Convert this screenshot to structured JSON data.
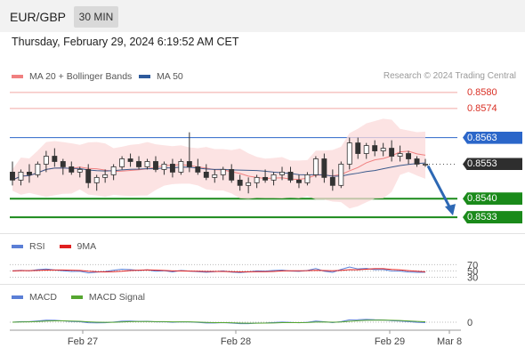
{
  "header": {
    "pair": "EUR/GBP",
    "timeframe": "30 MIN"
  },
  "timestamp": "Thursday, February 29, 2024 6:19:52 AM CET",
  "credit": "Research © 2024 Trading Central",
  "colors": {
    "resistance": "#e8605a",
    "resistance_light": "#f2a9a5",
    "pivot": "#2b66c9",
    "support": "#1a8a1a",
    "last_price_tag": "#2e2e2e",
    "arrow": "#2d68b4",
    "candle_up": "#333333",
    "candle_down": "#333333",
    "bands": "#fbd9d9",
    "ma20": "#f08080",
    "ma50": "#3b5a8c",
    "rsi": "#5b7fd6",
    "rsi_ma": "#e02020",
    "macd": "#5b7fd6",
    "macd_signal": "#55a630"
  },
  "price_legend": [
    {
      "label": "MA 20 + Bollinger Bands",
      "color": "#f08080"
    },
    {
      "label": "MA 50",
      "color": "#2e5a9c"
    }
  ],
  "levels": [
    {
      "label": "0.8580",
      "kind": "resistance"
    },
    {
      "label": "0.8574",
      "kind": "resistance"
    },
    {
      "label": "0.8563",
      "kind": "pivot"
    },
    {
      "label": "0.8553",
      "kind": "last"
    },
    {
      "label": "0.8540",
      "kind": "support"
    },
    {
      "label": "0.8533",
      "kind": "support"
    }
  ],
  "rsi_panel": {
    "legend": [
      {
        "label": "RSI",
        "color": "#5b7fd6"
      },
      {
        "label": "9MA",
        "color": "#e02020"
      }
    ],
    "ticks": [
      "70",
      "50",
      "30"
    ]
  },
  "macd_panel": {
    "legend": [
      {
        "label": "MACD",
        "color": "#5b7fd6"
      },
      {
        "label": "MACD Signal",
        "color": "#55a630"
      }
    ],
    "ticks": [
      "0"
    ]
  },
  "x_labels": [
    "Feb 27",
    "Feb 28",
    "Feb 29",
    "Mar 8"
  ],
  "chart_data": {
    "type": "candlestick",
    "y_range": [
      0.8527,
      0.8584
    ],
    "candles_ohlc": [
      [
        0.855,
        0.8554,
        0.8545,
        0.8547
      ],
      [
        0.8547,
        0.8551,
        0.8545,
        0.855
      ],
      [
        0.855,
        0.8553,
        0.8546,
        0.8549
      ],
      [
        0.8549,
        0.8554,
        0.8548,
        0.8553
      ],
      [
        0.8553,
        0.8558,
        0.855,
        0.8556
      ],
      [
        0.8556,
        0.8559,
        0.8552,
        0.8554
      ],
      [
        0.8554,
        0.8555,
        0.8549,
        0.8552
      ],
      [
        0.8552,
        0.8554,
        0.8549,
        0.855
      ],
      [
        0.855,
        0.8552,
        0.8548,
        0.8551
      ],
      [
        0.8551,
        0.8553,
        0.8544,
        0.8546
      ],
      [
        0.8546,
        0.8549,
        0.8543,
        0.8548
      ],
      [
        0.8548,
        0.8551,
        0.8546,
        0.8549
      ],
      [
        0.8549,
        0.8553,
        0.8547,
        0.8552
      ],
      [
        0.8552,
        0.8556,
        0.8551,
        0.8555
      ],
      [
        0.8555,
        0.8557,
        0.8552,
        0.8554
      ],
      [
        0.8554,
        0.8556,
        0.8551,
        0.8552
      ],
      [
        0.8552,
        0.8555,
        0.8551,
        0.8554
      ],
      [
        0.8554,
        0.8556,
        0.855,
        0.8551
      ],
      [
        0.8551,
        0.8554,
        0.8549,
        0.8553
      ],
      [
        0.8553,
        0.8555,
        0.8548,
        0.855
      ],
      [
        0.855,
        0.8555,
        0.8549,
        0.8554
      ],
      [
        0.8554,
        0.8565,
        0.855,
        0.8552
      ],
      [
        0.8552,
        0.8555,
        0.8549,
        0.855
      ],
      [
        0.855,
        0.8553,
        0.8547,
        0.8548
      ],
      [
        0.8548,
        0.8551,
        0.8546,
        0.8549
      ],
      [
        0.8549,
        0.8552,
        0.8547,
        0.8551
      ],
      [
        0.8551,
        0.8553,
        0.8546,
        0.8547
      ],
      [
        0.8547,
        0.8549,
        0.8543,
        0.8545
      ],
      [
        0.8545,
        0.8548,
        0.8542,
        0.8546
      ],
      [
        0.8546,
        0.8549,
        0.8544,
        0.8548
      ],
      [
        0.8548,
        0.8551,
        0.8546,
        0.8547
      ],
      [
        0.8547,
        0.855,
        0.8545,
        0.8549
      ],
      [
        0.8549,
        0.8552,
        0.8547,
        0.855
      ],
      [
        0.855,
        0.8552,
        0.8546,
        0.8547
      ],
      [
        0.8547,
        0.8549,
        0.8544,
        0.8546
      ],
      [
        0.8546,
        0.855,
        0.8545,
        0.8549
      ],
      [
        0.8549,
        0.8556,
        0.8548,
        0.8555
      ],
      [
        0.8555,
        0.8557,
        0.8546,
        0.8548
      ],
      [
        0.8548,
        0.8551,
        0.8543,
        0.8545
      ],
      [
        0.8545,
        0.8554,
        0.8544,
        0.8553
      ],
      [
        0.8553,
        0.8563,
        0.8551,
        0.8561
      ],
      [
        0.8561,
        0.8563,
        0.8555,
        0.8557
      ],
      [
        0.8557,
        0.8561,
        0.8555,
        0.856
      ],
      [
        0.856,
        0.8562,
        0.8556,
        0.8558
      ],
      [
        0.8558,
        0.8561,
        0.8556,
        0.8559
      ],
      [
        0.8559,
        0.8562,
        0.8554,
        0.8556
      ],
      [
        0.8556,
        0.856,
        0.8554,
        0.8557
      ],
      [
        0.8557,
        0.8558,
        0.8553,
        0.8555
      ],
      [
        0.8555,
        0.8556,
        0.8552,
        0.8553
      ],
      [
        0.8553,
        0.8555,
        0.8552,
        0.8553
      ]
    ],
    "arrow": {
      "from": 0.8553,
      "to": 0.8533,
      "direction": "down"
    },
    "rsi_range": [
      0,
      100
    ],
    "macd_zero_line": 0
  }
}
